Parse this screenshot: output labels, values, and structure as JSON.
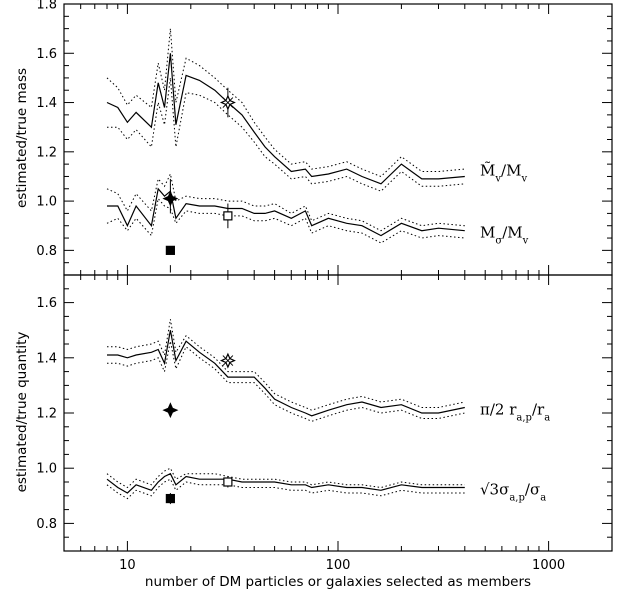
{
  "chart_data": [
    {
      "type": "line",
      "panel": "top",
      "xscale": "log",
      "xlim": [
        5,
        2000
      ],
      "ylim": [
        0.7,
        1.8
      ],
      "ylabel": "estimated/true mass",
      "xlabel": "number of DM particles or galaxies selected as members",
      "x_ticks": [
        10,
        100,
        1000
      ],
      "x_tick_labels": [
        "",
        "",
        ""
      ],
      "y_ticks": [
        0.8,
        1.0,
        1.2,
        1.4,
        1.6,
        1.8
      ],
      "y_tick_labels": [
        "0.8",
        "1.0",
        "1.2",
        "1.4",
        "1.6",
        "1.8"
      ],
      "x": [
        8,
        9,
        10,
        11,
        13,
        14,
        15,
        16,
        17,
        19,
        22,
        26,
        30,
        35,
        40,
        45,
        50,
        60,
        70,
        75,
        90,
        110,
        130,
        160,
        200,
        250,
        300,
        400
      ],
      "series": [
        {
          "name": "M̃v/Mv",
          "label_text": "M̃",
          "label_sub": "v",
          "label_tail": "/M",
          "label_sub2": "v",
          "median": [
            1.4,
            1.38,
            1.32,
            1.36,
            1.3,
            1.48,
            1.38,
            1.6,
            1.31,
            1.51,
            1.49,
            1.45,
            1.4,
            1.35,
            1.28,
            1.22,
            1.18,
            1.12,
            1.13,
            1.1,
            1.11,
            1.13,
            1.1,
            1.07,
            1.15,
            1.09,
            1.09,
            1.1
          ],
          "upper": [
            1.5,
            1.46,
            1.39,
            1.43,
            1.38,
            1.56,
            1.45,
            1.7,
            1.4,
            1.58,
            1.55,
            1.5,
            1.45,
            1.4,
            1.32,
            1.26,
            1.21,
            1.15,
            1.16,
            1.13,
            1.14,
            1.16,
            1.13,
            1.1,
            1.18,
            1.12,
            1.12,
            1.13
          ],
          "lower": [
            1.3,
            1.3,
            1.25,
            1.29,
            1.22,
            1.4,
            1.31,
            1.5,
            1.22,
            1.44,
            1.43,
            1.4,
            1.35,
            1.3,
            1.24,
            1.18,
            1.15,
            1.09,
            1.1,
            1.07,
            1.08,
            1.1,
            1.07,
            1.04,
            1.12,
            1.06,
            1.06,
            1.07
          ],
          "markers": [
            {
              "symbol": "open-star",
              "x": 30,
              "y": 1.4,
              "err": [
                1.34,
                1.46
              ]
            }
          ]
        },
        {
          "name": "Mσ/Mv",
          "label_text": "M",
          "label_sub": "σ",
          "label_tail": "/M",
          "label_sub2": "v",
          "median": [
            0.98,
            0.98,
            0.9,
            0.98,
            0.9,
            1.05,
            1.02,
            1.04,
            0.93,
            0.99,
            0.98,
            0.98,
            0.97,
            0.97,
            0.95,
            0.95,
            0.96,
            0.93,
            0.96,
            0.9,
            0.93,
            0.91,
            0.9,
            0.86,
            0.91,
            0.88,
            0.89,
            0.88
          ],
          "upper": [
            1.05,
            1.03,
            0.96,
            1.03,
            0.96,
            1.09,
            1.06,
            1.11,
            1.0,
            1.02,
            1.01,
            1.01,
            1.0,
            1.0,
            0.98,
            0.98,
            0.99,
            0.95,
            0.98,
            0.92,
            0.95,
            0.93,
            0.92,
            0.88,
            0.93,
            0.9,
            0.91,
            0.9
          ],
          "lower": [
            0.91,
            0.93,
            0.88,
            0.93,
            0.86,
            1.01,
            0.98,
            0.97,
            0.91,
            0.96,
            0.95,
            0.95,
            0.94,
            0.94,
            0.92,
            0.92,
            0.93,
            0.9,
            0.93,
            0.87,
            0.9,
            0.88,
            0.87,
            0.83,
            0.88,
            0.85,
            0.86,
            0.85
          ],
          "markers": [
            {
              "symbol": "filled-star",
              "x": 16,
              "y": 1.01,
              "err": [
                0.95,
                1.09
              ]
            },
            {
              "symbol": "open-square",
              "x": 30,
              "y": 0.94,
              "err": [
                0.89,
                0.99
              ]
            },
            {
              "symbol": "filled-square",
              "x": 16,
              "y": 0.8,
              "err": [
                0.71,
                0.74
              ]
            }
          ]
        }
      ]
    },
    {
      "type": "line",
      "panel": "bottom",
      "xscale": "log",
      "xlim": [
        5,
        2000
      ],
      "ylim": [
        0.7,
        1.7
      ],
      "ylabel": "estimated/true quantity",
      "xlabel": "number of DM particles or galaxies selected as members",
      "x_ticks": [
        10,
        100,
        1000
      ],
      "x_tick_labels": [
        "10",
        "100",
        "1000"
      ],
      "y_ticks": [
        0.8,
        1.0,
        1.2,
        1.4,
        1.6
      ],
      "y_tick_labels": [
        "0.8",
        "1.0",
        "1.2",
        "1.4",
        "1.6"
      ],
      "x": [
        8,
        9,
        10,
        11,
        13,
        14,
        15,
        16,
        17,
        19,
        22,
        26,
        30,
        35,
        40,
        45,
        50,
        60,
        70,
        75,
        90,
        110,
        130,
        160,
        200,
        250,
        300,
        400
      ],
      "series": [
        {
          "name": "π/2 ra,p/ra",
          "label_text": "π/2 r",
          "label_sub": "a,p",
          "label_tail": "/r",
          "label_sub2": "a",
          "median": [
            1.41,
            1.41,
            1.4,
            1.41,
            1.42,
            1.43,
            1.38,
            1.5,
            1.39,
            1.46,
            1.42,
            1.38,
            1.33,
            1.33,
            1.33,
            1.29,
            1.25,
            1.22,
            1.2,
            1.19,
            1.21,
            1.23,
            1.24,
            1.22,
            1.23,
            1.2,
            1.2,
            1.22
          ],
          "upper": [
            1.44,
            1.44,
            1.43,
            1.44,
            1.45,
            1.46,
            1.41,
            1.54,
            1.42,
            1.48,
            1.44,
            1.4,
            1.35,
            1.35,
            1.35,
            1.31,
            1.27,
            1.24,
            1.22,
            1.21,
            1.23,
            1.25,
            1.26,
            1.24,
            1.25,
            1.22,
            1.22,
            1.24
          ],
          "lower": [
            1.38,
            1.38,
            1.37,
            1.38,
            1.39,
            1.4,
            1.35,
            1.46,
            1.36,
            1.44,
            1.4,
            1.36,
            1.31,
            1.31,
            1.31,
            1.27,
            1.23,
            1.2,
            1.18,
            1.17,
            1.19,
            1.21,
            1.22,
            1.2,
            1.21,
            1.18,
            1.18,
            1.2
          ],
          "markers": [
            {
              "symbol": "open-star",
              "x": 30,
              "y": 1.39,
              "err": [
                1.37,
                1.41
              ]
            },
            {
              "symbol": "filled-star",
              "x": 16,
              "y": 1.21,
              "err": [
                1.19,
                1.23
              ]
            }
          ]
        },
        {
          "name": "√3σa,p/σa",
          "label_text": "√3σ",
          "label_sub": "a,p",
          "label_tail": "/σ",
          "label_sub2": "a",
          "median": [
            0.96,
            0.93,
            0.91,
            0.94,
            0.92,
            0.95,
            0.97,
            0.98,
            0.94,
            0.97,
            0.96,
            0.96,
            0.96,
            0.95,
            0.95,
            0.95,
            0.95,
            0.94,
            0.94,
            0.93,
            0.94,
            0.93,
            0.93,
            0.92,
            0.94,
            0.93,
            0.93,
            0.93
          ],
          "upper": [
            0.98,
            0.95,
            0.93,
            0.96,
            0.94,
            0.97,
            0.99,
            1.0,
            0.96,
            0.98,
            0.98,
            0.98,
            0.97,
            0.96,
            0.96,
            0.96,
            0.96,
            0.95,
            0.95,
            0.94,
            0.95,
            0.94,
            0.94,
            0.93,
            0.95,
            0.94,
            0.94,
            0.94
          ],
          "lower": [
            0.94,
            0.91,
            0.89,
            0.92,
            0.9,
            0.93,
            0.95,
            0.96,
            0.92,
            0.95,
            0.94,
            0.94,
            0.94,
            0.93,
            0.93,
            0.93,
            0.93,
            0.92,
            0.92,
            0.91,
            0.92,
            0.91,
            0.91,
            0.9,
            0.92,
            0.91,
            0.91,
            0.91
          ],
          "markers": [
            {
              "symbol": "open-square",
              "x": 30,
              "y": 0.95,
              "err": [
                0.93,
                0.97
              ]
            },
            {
              "symbol": "filled-square",
              "x": 16,
              "y": 0.89,
              "err": [
                0.87,
                0.91
              ]
            }
          ]
        }
      ]
    }
  ]
}
